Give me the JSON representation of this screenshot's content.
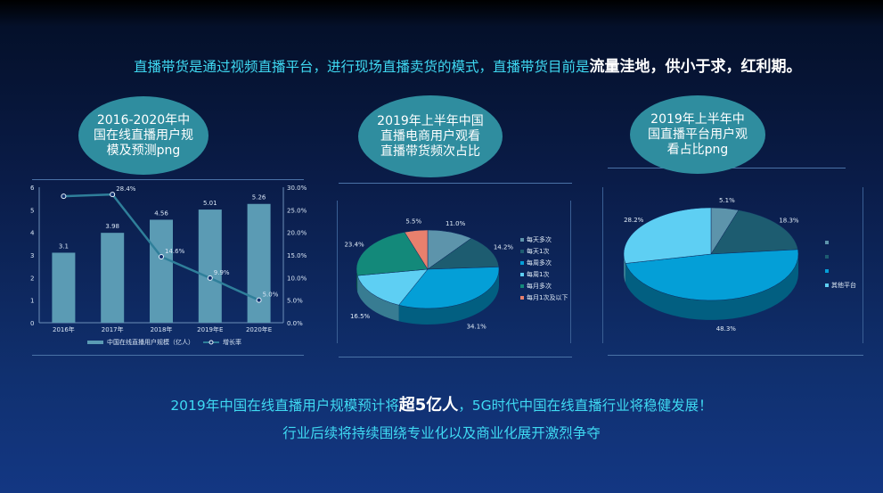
{
  "headline": {
    "text": "直播带货是通过视频直播平台，进行现场直播卖货的模式，直播带货目前是",
    "bold": "流量洼地，供小于求，红利期。"
  },
  "bubbles": {
    "b1": "2016-2020年中国在线直播用户规模及预测png",
    "b2": "2019年上半年中国直播电商用户观看直播带货频次占比",
    "b3": "2019年上半年中国直播平台用户观看占比png"
  },
  "bottom": {
    "line1_a": "2019年中国在线直播用户规模预计将",
    "line1_bold": "超5亿人",
    "line1_b": "，5G时代中国在线直播行业将稳健发展！",
    "line2": "行业后续将持续围绕专业化以及商业化展开激烈争夺"
  },
  "colors": {
    "headline": "#3fd9f2",
    "bar": "#5b9bb4",
    "line": "#2f7f9a",
    "bubble": "#2f8d9f"
  },
  "chart_data": [
    {
      "type": "bar",
      "categories": [
        "2016年",
        "2017年",
        "2018年",
        "2019年E",
        "2020年E"
      ],
      "series": [
        {
          "name": "中国在线直播用户规模（亿人）",
          "values": [
            3.1,
            3.98,
            4.56,
            5.01,
            5.26
          ],
          "labels": [
            "3.1",
            "3.98",
            "4.56",
            "5.01",
            "5.26"
          ]
        },
        {
          "name": "增长率",
          "type": "line",
          "values": [
            28.0,
            28.4,
            14.6,
            9.9,
            5.0
          ],
          "labels": [
            "",
            "28.4%",
            "14.6%",
            "9.9%",
            "5.0%"
          ]
        }
      ],
      "y_ticks": [
        "0",
        "1",
        "2",
        "3",
        "4",
        "5",
        "6"
      ],
      "y2_ticks": [
        "0.0%",
        "5.0%",
        "10.0%",
        "15.0%",
        "20.0%",
        "25.0%",
        "30.0%"
      ],
      "ylim": [
        0,
        6
      ],
      "y2lim": [
        0,
        30
      ]
    },
    {
      "type": "pie",
      "labels": [
        "每天多次",
        "每天1次",
        "每周多次",
        "每周1次",
        "每月多次",
        "每月1次及以下"
      ],
      "values": [
        11.0,
        14.2,
        34.1,
        16.5,
        23.4,
        5.5
      ],
      "value_labels": [
        "11.0%",
        "14.2%",
        "34.1%",
        "16.5%",
        "23.4%",
        "5.5%"
      ],
      "colors": [
        "#5d94ab",
        "#1d5c70",
        "#049fd7",
        "#5ecff3",
        "#13897a",
        "#e8806d"
      ]
    },
    {
      "type": "pie",
      "labels": [
        "",
        "",
        "",
        "其他平台"
      ],
      "values": [
        5.1,
        18.3,
        48.3,
        28.2
      ],
      "value_labels": [
        "5.1%",
        "18.3%",
        "48.3%",
        "28.2%"
      ],
      "colors": [
        "#5d94ab",
        "#1d5c70",
        "#049fd7",
        "#5ecff3"
      ]
    }
  ]
}
